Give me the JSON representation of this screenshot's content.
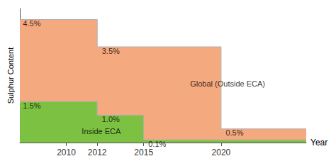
{
  "chart_data": {
    "type": "area",
    "xlabel": "Year",
    "ylabel": "Sulphur Content",
    "series": [
      {
        "color": "#f5a97f",
        "x": [
          2007,
          2012,
          2012,
          2020,
          2020,
          2025.5
        ],
        "values": [
          4.5,
          4.5,
          3.5,
          3.5,
          0.5,
          0.5
        ]
      },
      {
        "color": "#7dc142",
        "x": [
          2007,
          2012,
          2012,
          2015,
          2015,
          2025.5
        ],
        "values": [
          1.5,
          1.5,
          1.0,
          1.0,
          0.1,
          0.1
        ]
      }
    ],
    "annotations": [
      {
        "text": "4.5%",
        "x": 2007.2,
        "y": 4.5
      },
      {
        "text": "3.5%",
        "x": 2012.3,
        "y": 3.5
      },
      {
        "text": "0.5%",
        "x": 2020.3,
        "y": 0.5
      },
      {
        "text": "1.5%",
        "x": 2007.2,
        "y": 1.5
      },
      {
        "text": "1.0%",
        "x": 2012.3,
        "y": 1.0
      },
      {
        "text": "0.1%",
        "x": 2015.3,
        "y": 0.1
      },
      {
        "text": "Global (Outside ECA)",
        "x": 2018,
        "y": 2.3
      },
      {
        "text": "Inside ECA",
        "x": 2011,
        "y": 0.55
      }
    ],
    "xlim": [
      2007,
      2025.5
    ],
    "xticks": [
      2010,
      2012,
      2015,
      2020
    ],
    "ylim": [
      0,
      4.9
    ],
    "yticks": [],
    "grid": false,
    "tick_labels": "x"
  }
}
